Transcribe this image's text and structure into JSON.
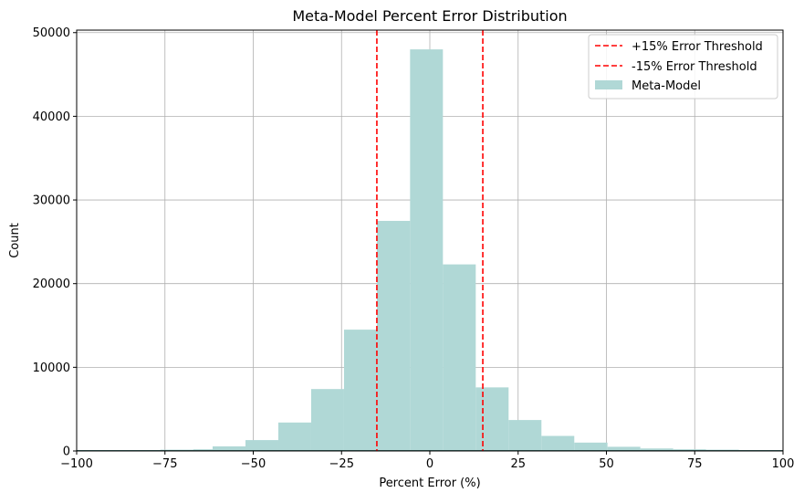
{
  "chart_data": {
    "type": "bar",
    "title": "Meta-Model Percent Error Distribution",
    "xlabel": "Percent Error (%)",
    "ylabel": "Count",
    "xlim": [
      -100,
      100
    ],
    "ylim": [
      0,
      50300
    ],
    "xticks": [
      -100,
      -75,
      -50,
      -25,
      0,
      25,
      50,
      75,
      100
    ],
    "xtick_labels": [
      "−100",
      "−75",
      "−50",
      "−25",
      "0",
      "25",
      "50",
      "75",
      "100"
    ],
    "yticks": [
      0,
      10000,
      20000,
      30000,
      40000,
      50000
    ],
    "ytick_labels": [
      "0",
      "10000",
      "20000",
      "30000",
      "40000",
      "50000"
    ],
    "grid": true,
    "legend_position": "top-right",
    "histogram": {
      "name": "Meta-Model",
      "color": "#b0d8d6",
      "bins": [
        {
          "start": -104.2,
          "end": -94.9,
          "count": 100
        },
        {
          "start": -94.9,
          "end": -85.6,
          "count": 80
        },
        {
          "start": -85.6,
          "end": -76.3,
          "count": 100
        },
        {
          "start": -76.3,
          "end": -67.0,
          "count": 150
        },
        {
          "start": -67.0,
          "end": -61.5,
          "count": 200
        },
        {
          "start": -61.5,
          "end": -52.2,
          "count": 550
        },
        {
          "start": -52.2,
          "end": -42.9,
          "count": 1300
        },
        {
          "start": -42.9,
          "end": -33.6,
          "count": 3400
        },
        {
          "start": -33.6,
          "end": -24.3,
          "count": 7400
        },
        {
          "start": -24.3,
          "end": -15.0,
          "count": 14500
        },
        {
          "start": -15.0,
          "end": -5.6,
          "count": 27500
        },
        {
          "start": -5.6,
          "end": 3.7,
          "count": 48000
        },
        {
          "start": 3.7,
          "end": 13.0,
          "count": 22300
        },
        {
          "start": 13.0,
          "end": 22.3,
          "count": 7600
        },
        {
          "start": 22.3,
          "end": 31.6,
          "count": 3700
        },
        {
          "start": 31.6,
          "end": 40.9,
          "count": 1800
        },
        {
          "start": 40.9,
          "end": 50.3,
          "count": 1000
        },
        {
          "start": 50.3,
          "end": 59.6,
          "count": 500
        },
        {
          "start": 59.6,
          "end": 68.9,
          "count": 300
        },
        {
          "start": 68.9,
          "end": 78.2,
          "count": 200
        },
        {
          "start": 78.2,
          "end": 87.5,
          "count": 150
        },
        {
          "start": 87.5,
          "end": 96.8,
          "count": 100
        },
        {
          "start": 96.8,
          "end": 106.1,
          "count": 80
        }
      ]
    },
    "thresholds": [
      {
        "name": "+15% Error Threshold",
        "x": 15,
        "color": "#ff0000",
        "style": "dashed"
      },
      {
        "name": "-15% Error Threshold",
        "x": -15,
        "color": "#ff0000",
        "style": "dashed"
      }
    ]
  }
}
